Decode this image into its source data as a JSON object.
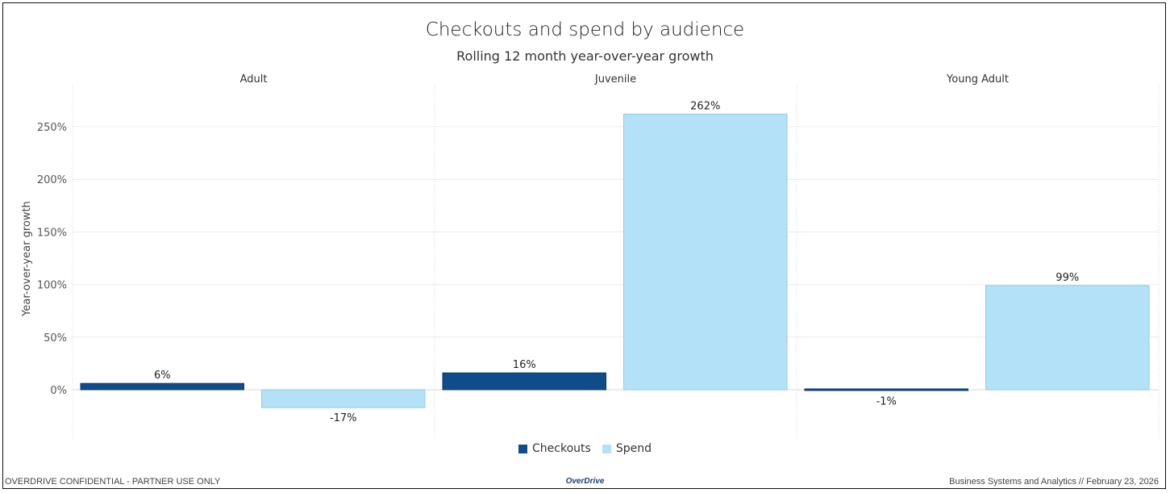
{
  "header": {
    "title": "Checkouts and spend by audience",
    "subtitle": "Rolling 12 month year-over-year growth"
  },
  "footer": {
    "left": "OVERDRIVE CONFIDENTIAL - PARTNER USE ONLY",
    "logo": "OverDrive",
    "right": "Business Systems and Analytics // February 23, 2026"
  },
  "colors": {
    "checkouts": "#0f4c8a",
    "spend": "#b3e1f7",
    "spend_border": "#8fcbe8",
    "checkouts_border": "#0a3a6b"
  },
  "chart_data": {
    "type": "bar",
    "panels": [
      "Adult",
      "Juvenile",
      "Young Adult"
    ],
    "series": [
      {
        "name": "Checkouts",
        "values": [
          6,
          16,
          -1
        ],
        "labels": [
          "6%",
          "16%",
          "-1%"
        ]
      },
      {
        "name": "Spend",
        "values": [
          -17,
          262,
          99
        ],
        "labels": [
          "-17%",
          "262%",
          "99%"
        ]
      }
    ],
    "ylabel": "Year-over-year growth",
    "ylim": [
      -47,
      286
    ],
    "yticks": [
      0,
      50,
      100,
      150,
      200,
      250
    ],
    "ytick_labels": [
      "0%",
      "50%",
      "100%",
      "150%",
      "200%",
      "250%"
    ],
    "grid": true,
    "legend": "bottom-center"
  }
}
